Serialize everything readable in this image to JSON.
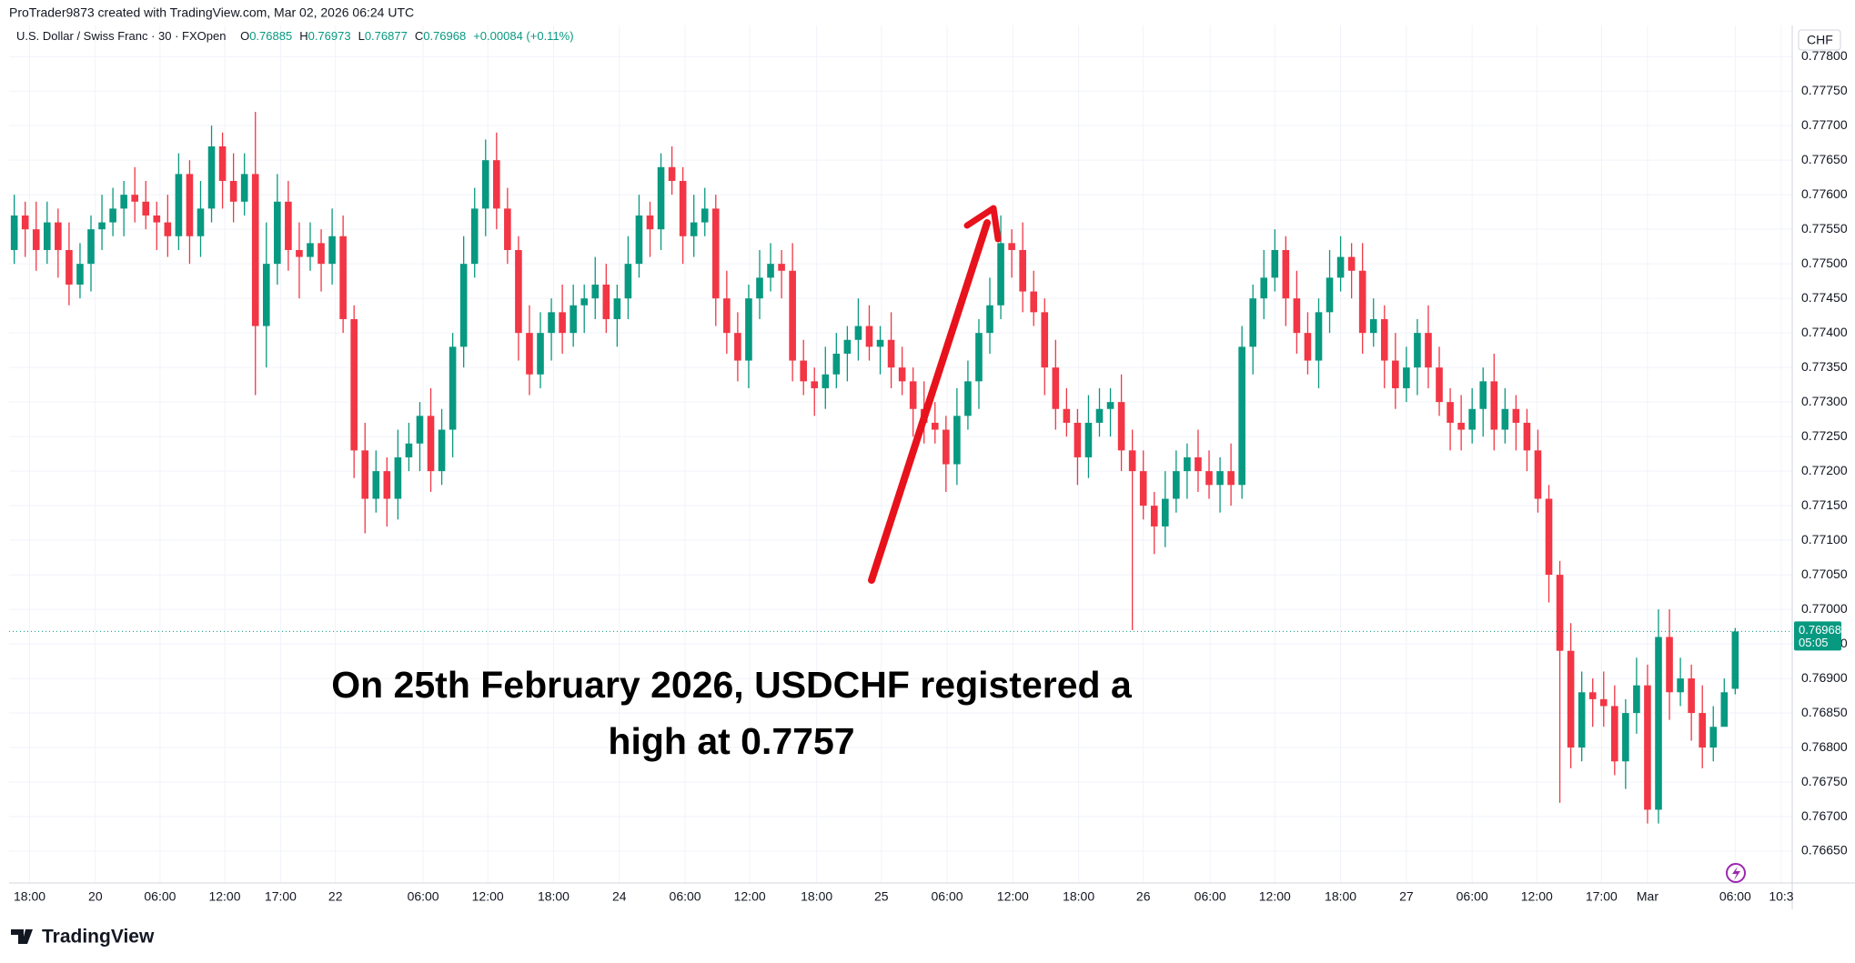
{
  "header": {
    "credit": "ProTrader9873 created with TradingView.com, Mar 02, 2026 06:24 UTC",
    "symbol": "U.S. Dollar / Swiss Franc · 30 · FXOpen",
    "ohlc": [
      {
        "label": "O",
        "value": "0.76885"
      },
      {
        "label": "H",
        "value": "0.76973"
      },
      {
        "label": "L",
        "value": "0.76877"
      },
      {
        "label": "C",
        "value": "0.76968"
      }
    ],
    "change": "+0.00084 (+0.11%)",
    "currency": "CHF"
  },
  "chart_data": {
    "type": "candlestick",
    "up_color": "#089981",
    "down_color": "#f23645",
    "candles": [
      [
        0.7752,
        0.776,
        0.775,
        0.7757
      ],
      [
        0.7757,
        0.7759,
        0.7751,
        0.7755
      ],
      [
        0.7755,
        0.7759,
        0.7749,
        0.7752
      ],
      [
        0.7752,
        0.7759,
        0.775,
        0.7756
      ],
      [
        0.7756,
        0.7758,
        0.7748,
        0.7752
      ],
      [
        0.7752,
        0.7756,
        0.7744,
        0.7747
      ],
      [
        0.7747,
        0.7753,
        0.7745,
        0.775
      ],
      [
        0.775,
        0.7757,
        0.7746,
        0.7755
      ],
      [
        0.7755,
        0.776,
        0.7752,
        0.7756
      ],
      [
        0.7756,
        0.7761,
        0.7754,
        0.7758
      ],
      [
        0.7758,
        0.7762,
        0.7754,
        0.776
      ],
      [
        0.776,
        0.7764,
        0.7756,
        0.7759
      ],
      [
        0.7759,
        0.7762,
        0.7755,
        0.7757
      ],
      [
        0.7757,
        0.7759,
        0.7752,
        0.7756
      ],
      [
        0.7756,
        0.776,
        0.7751,
        0.7754
      ],
      [
        0.7754,
        0.7766,
        0.7752,
        0.7763
      ],
      [
        0.7763,
        0.7765,
        0.775,
        0.7754
      ],
      [
        0.7754,
        0.7762,
        0.7751,
        0.7758
      ],
      [
        0.7758,
        0.777,
        0.7756,
        0.7767
      ],
      [
        0.7767,
        0.7769,
        0.7758,
        0.7762
      ],
      [
        0.7762,
        0.7766,
        0.7756,
        0.7759
      ],
      [
        0.7759,
        0.7766,
        0.7757,
        0.7763
      ],
      [
        0.7763,
        0.7772,
        0.7731,
        0.7741
      ],
      [
        0.7741,
        0.7756,
        0.7735,
        0.775
      ],
      [
        0.775,
        0.7763,
        0.7747,
        0.7759
      ],
      [
        0.7759,
        0.7762,
        0.7749,
        0.7752
      ],
      [
        0.7752,
        0.7756,
        0.7745,
        0.7751
      ],
      [
        0.7751,
        0.7756,
        0.7749,
        0.7753
      ],
      [
        0.7753,
        0.7755,
        0.7746,
        0.775
      ],
      [
        0.775,
        0.7758,
        0.7747,
        0.7754
      ],
      [
        0.7754,
        0.7757,
        0.774,
        0.7742
      ],
      [
        0.7742,
        0.7744,
        0.7719,
        0.7723
      ],
      [
        0.7723,
        0.7727,
        0.7711,
        0.7716
      ],
      [
        0.7716,
        0.7723,
        0.7714,
        0.772
      ],
      [
        0.772,
        0.7722,
        0.7712,
        0.7716
      ],
      [
        0.7716,
        0.7726,
        0.7713,
        0.7722
      ],
      [
        0.7722,
        0.7727,
        0.772,
        0.7724
      ],
      [
        0.7724,
        0.773,
        0.772,
        0.7728
      ],
      [
        0.7728,
        0.7732,
        0.7717,
        0.772
      ],
      [
        0.772,
        0.7729,
        0.7718,
        0.7726
      ],
      [
        0.7726,
        0.774,
        0.7722,
        0.7738
      ],
      [
        0.7738,
        0.7754,
        0.7735,
        0.775
      ],
      [
        0.775,
        0.7761,
        0.7748,
        0.7758
      ],
      [
        0.7758,
        0.7768,
        0.7754,
        0.7765
      ],
      [
        0.7765,
        0.7769,
        0.7755,
        0.7758
      ],
      [
        0.7758,
        0.7761,
        0.775,
        0.7752
      ],
      [
        0.7752,
        0.7754,
        0.7736,
        0.774
      ],
      [
        0.774,
        0.7744,
        0.7731,
        0.7734
      ],
      [
        0.7734,
        0.7743,
        0.7732,
        0.774
      ],
      [
        0.774,
        0.7745,
        0.7736,
        0.7743
      ],
      [
        0.7743,
        0.7747,
        0.7737,
        0.774
      ],
      [
        0.774,
        0.7747,
        0.7738,
        0.7744
      ],
      [
        0.7744,
        0.7747,
        0.774,
        0.7745
      ],
      [
        0.7745,
        0.7751,
        0.7742,
        0.7747
      ],
      [
        0.7747,
        0.775,
        0.774,
        0.7742
      ],
      [
        0.7742,
        0.7747,
        0.7738,
        0.7745
      ],
      [
        0.7745,
        0.7754,
        0.7742,
        0.775
      ],
      [
        0.775,
        0.776,
        0.7748,
        0.7757
      ],
      [
        0.7757,
        0.7759,
        0.7751,
        0.7755
      ],
      [
        0.7755,
        0.7766,
        0.7752,
        0.7764
      ],
      [
        0.7764,
        0.7767,
        0.776,
        0.7762
      ],
      [
        0.7762,
        0.7764,
        0.775,
        0.7754
      ],
      [
        0.7754,
        0.776,
        0.7751,
        0.7756
      ],
      [
        0.7756,
        0.7761,
        0.7754,
        0.7758
      ],
      [
        0.7758,
        0.776,
        0.7741,
        0.7745
      ],
      [
        0.7745,
        0.7749,
        0.7737,
        0.774
      ],
      [
        0.774,
        0.7743,
        0.7733,
        0.7736
      ],
      [
        0.7736,
        0.7747,
        0.7732,
        0.7745
      ],
      [
        0.7745,
        0.7752,
        0.7742,
        0.7748
      ],
      [
        0.7748,
        0.7753,
        0.7746,
        0.775
      ],
      [
        0.775,
        0.7752,
        0.7745,
        0.7749
      ],
      [
        0.7749,
        0.7753,
        0.7733,
        0.7736
      ],
      [
        0.7736,
        0.7739,
        0.7731,
        0.7733
      ],
      [
        0.7733,
        0.7735,
        0.7728,
        0.7732
      ],
      [
        0.7732,
        0.7738,
        0.7729,
        0.7734
      ],
      [
        0.7734,
        0.774,
        0.7732,
        0.7737
      ],
      [
        0.7737,
        0.7741,
        0.7733,
        0.7739
      ],
      [
        0.7739,
        0.7745,
        0.7736,
        0.7741
      ],
      [
        0.7741,
        0.7744,
        0.7736,
        0.7738
      ],
      [
        0.7738,
        0.7741,
        0.7734,
        0.7739
      ],
      [
        0.7739,
        0.7743,
        0.7732,
        0.7735
      ],
      [
        0.7735,
        0.7738,
        0.7731,
        0.7733
      ],
      [
        0.7733,
        0.7735,
        0.7725,
        0.7729
      ],
      [
        0.7729,
        0.7733,
        0.7724,
        0.7727
      ],
      [
        0.7727,
        0.773,
        0.7724,
        0.7726
      ],
      [
        0.7726,
        0.7728,
        0.7717,
        0.7721
      ],
      [
        0.7721,
        0.7732,
        0.7718,
        0.7728
      ],
      [
        0.7728,
        0.7736,
        0.7726,
        0.7733
      ],
      [
        0.7733,
        0.7742,
        0.7729,
        0.774
      ],
      [
        0.774,
        0.7748,
        0.7737,
        0.7744
      ],
      [
        0.7744,
        0.7757,
        0.7742,
        0.7753
      ],
      [
        0.7753,
        0.7755,
        0.7748,
        0.7752
      ],
      [
        0.7752,
        0.7756,
        0.7743,
        0.7746
      ],
      [
        0.7746,
        0.7749,
        0.7741,
        0.7743
      ],
      [
        0.7743,
        0.7745,
        0.7731,
        0.7735
      ],
      [
        0.7735,
        0.7739,
        0.7726,
        0.7729
      ],
      [
        0.7729,
        0.7732,
        0.7725,
        0.7727
      ],
      [
        0.7727,
        0.7729,
        0.7718,
        0.7722
      ],
      [
        0.7722,
        0.7731,
        0.7719,
        0.7727
      ],
      [
        0.7727,
        0.7732,
        0.7725,
        0.7729
      ],
      [
        0.7729,
        0.7732,
        0.7725,
        0.773
      ],
      [
        0.773,
        0.7734,
        0.772,
        0.7723
      ],
      [
        0.7723,
        0.7726,
        0.7697,
        0.772
      ],
      [
        0.772,
        0.7723,
        0.7713,
        0.7715
      ],
      [
        0.7715,
        0.7717,
        0.7708,
        0.7712
      ],
      [
        0.7712,
        0.772,
        0.7709,
        0.7716
      ],
      [
        0.7716,
        0.7723,
        0.7714,
        0.772
      ],
      [
        0.772,
        0.7724,
        0.7716,
        0.7722
      ],
      [
        0.7722,
        0.7726,
        0.7717,
        0.772
      ],
      [
        0.772,
        0.7723,
        0.7716,
        0.7718
      ],
      [
        0.7718,
        0.7722,
        0.7714,
        0.772
      ],
      [
        0.772,
        0.7724,
        0.7715,
        0.7718
      ],
      [
        0.7718,
        0.7741,
        0.7716,
        0.7738
      ],
      [
        0.7738,
        0.7747,
        0.7734,
        0.7745
      ],
      [
        0.7745,
        0.7752,
        0.7742,
        0.7748
      ],
      [
        0.7748,
        0.7755,
        0.7746,
        0.7752
      ],
      [
        0.7752,
        0.7754,
        0.7741,
        0.7745
      ],
      [
        0.7745,
        0.7749,
        0.7737,
        0.774
      ],
      [
        0.774,
        0.7743,
        0.7734,
        0.7736
      ],
      [
        0.7736,
        0.7745,
        0.7732,
        0.7743
      ],
      [
        0.7743,
        0.7752,
        0.774,
        0.7748
      ],
      [
        0.7748,
        0.7754,
        0.7746,
        0.7751
      ],
      [
        0.7751,
        0.7753,
        0.7745,
        0.7749
      ],
      [
        0.7749,
        0.7753,
        0.7737,
        0.774
      ],
      [
        0.774,
        0.7745,
        0.7738,
        0.7742
      ],
      [
        0.7742,
        0.7744,
        0.7732,
        0.7736
      ],
      [
        0.7736,
        0.774,
        0.7729,
        0.7732
      ],
      [
        0.7732,
        0.7738,
        0.773,
        0.7735
      ],
      [
        0.7735,
        0.7742,
        0.7731,
        0.774
      ],
      [
        0.774,
        0.7744,
        0.7732,
        0.7735
      ],
      [
        0.7735,
        0.7738,
        0.7728,
        0.773
      ],
      [
        0.773,
        0.7732,
        0.7723,
        0.7727
      ],
      [
        0.7727,
        0.7731,
        0.7723,
        0.7726
      ],
      [
        0.7726,
        0.7732,
        0.7724,
        0.7729
      ],
      [
        0.7729,
        0.7735,
        0.7725,
        0.7733
      ],
      [
        0.7733,
        0.7737,
        0.7723,
        0.7726
      ],
      [
        0.7726,
        0.7732,
        0.7724,
        0.7729
      ],
      [
        0.7729,
        0.7731,
        0.7723,
        0.7727
      ],
      [
        0.7727,
        0.7729,
        0.772,
        0.7723
      ],
      [
        0.7723,
        0.7726,
        0.7714,
        0.7716
      ],
      [
        0.7716,
        0.7718,
        0.7701,
        0.7705
      ],
      [
        0.7705,
        0.7707,
        0.7672,
        0.7694
      ],
      [
        0.7694,
        0.7698,
        0.7677,
        0.768
      ],
      [
        0.768,
        0.7691,
        0.7678,
        0.7688
      ],
      [
        0.7688,
        0.769,
        0.7683,
        0.7687
      ],
      [
        0.7687,
        0.7691,
        0.7683,
        0.7686
      ],
      [
        0.7686,
        0.7689,
        0.7676,
        0.7678
      ],
      [
        0.7678,
        0.7687,
        0.7674,
        0.7685
      ],
      [
        0.7685,
        0.7693,
        0.7682,
        0.7689
      ],
      [
        0.7689,
        0.7692,
        0.7669,
        0.7671
      ],
      [
        0.7671,
        0.77,
        0.7669,
        0.7696
      ],
      [
        0.7696,
        0.77,
        0.7684,
        0.7688
      ],
      [
        0.7688,
        0.7693,
        0.7686,
        0.769
      ],
      [
        0.769,
        0.7692,
        0.7681,
        0.7685
      ],
      [
        0.7685,
        0.7689,
        0.7677,
        0.768
      ],
      [
        0.768,
        0.7686,
        0.7678,
        0.7683
      ],
      [
        0.7683,
        0.769,
        0.7684,
        0.7688
      ],
      [
        0.76885,
        0.76973,
        0.76877,
        0.76968
      ]
    ],
    "xlim": [
      -0.47,
      162.2
    ],
    "xticks": [
      {
        "value": 1.4,
        "label": "18:00"
      },
      {
        "value": 7.4,
        "label": "20"
      },
      {
        "value": 13.3,
        "label": "06:00"
      },
      {
        "value": 19.2,
        "label": "12:00"
      },
      {
        "value": 24.3,
        "label": "17:00"
      },
      {
        "value": 29.3,
        "label": "22"
      },
      {
        "value": 37.3,
        "label": "06:00"
      },
      {
        "value": 43.2,
        "label": "12:00"
      },
      {
        "value": 49.2,
        "label": "18:00"
      },
      {
        "value": 55.2,
        "label": "24"
      },
      {
        "value": 61.2,
        "label": "06:00"
      },
      {
        "value": 67.1,
        "label": "12:00"
      },
      {
        "value": 73.2,
        "label": "18:00"
      },
      {
        "value": 79.1,
        "label": "25"
      },
      {
        "value": 85.1,
        "label": "06:00"
      },
      {
        "value": 91.1,
        "label": "12:00"
      },
      {
        "value": 97.1,
        "label": "18:00"
      },
      {
        "value": 103.0,
        "label": "26"
      },
      {
        "value": 109.1,
        "label": "06:00"
      },
      {
        "value": 115.0,
        "label": "12:00"
      },
      {
        "value": 121.0,
        "label": "18:00"
      },
      {
        "value": 127.0,
        "label": "27"
      },
      {
        "value": 133.0,
        "label": "06:00"
      },
      {
        "value": 138.9,
        "label": "12:00"
      },
      {
        "value": 144.8,
        "label": "17:00"
      },
      {
        "value": 149.0,
        "label": "Mar"
      },
      {
        "value": 157.0,
        "label": "06:00"
      },
      {
        "value": 161.2,
        "label": "10:3"
      }
    ],
    "ylim": [
      0.76604,
      0.77845
    ],
    "yticks": [
      {
        "value": 0.7665,
        "label": "0.76650"
      },
      {
        "value": 0.767,
        "label": "0.76700"
      },
      {
        "value": 0.7675,
        "label": "0.76750"
      },
      {
        "value": 0.768,
        "label": "0.76800"
      },
      {
        "value": 0.7685,
        "label": "0.76850"
      },
      {
        "value": 0.769,
        "label": "0.76900"
      },
      {
        "value": 0.7695,
        "label": "0.76950"
      },
      {
        "value": 0.77,
        "label": "0.77000"
      },
      {
        "value": 0.7705,
        "label": "0.77050"
      },
      {
        "value": 0.771,
        "label": "0.77100"
      },
      {
        "value": 0.7715,
        "label": "0.77150"
      },
      {
        "value": 0.772,
        "label": "0.77200"
      },
      {
        "value": 0.7725,
        "label": "0.77250"
      },
      {
        "value": 0.773,
        "label": "0.77300"
      },
      {
        "value": 0.7735,
        "label": "0.77350"
      },
      {
        "value": 0.774,
        "label": "0.77400"
      },
      {
        "value": 0.7745,
        "label": "0.77450"
      },
      {
        "value": 0.775,
        "label": "0.77500"
      },
      {
        "value": 0.7755,
        "label": "0.77550"
      },
      {
        "value": 0.776,
        "label": "0.77600"
      },
      {
        "value": 0.7765,
        "label": "0.77650"
      },
      {
        "value": 0.777,
        "label": "0.77700"
      },
      {
        "value": 0.7775,
        "label": "0.77750"
      },
      {
        "value": 0.778,
        "label": "0.77800"
      }
    ],
    "grid": true,
    "last_price": 0.76968,
    "countdown": "05:05",
    "annotation": [
      "On 25th February 2026, USDCHF registered a",
      "high at 0.7757"
    ]
  },
  "footer": {
    "logo": "TradingView"
  }
}
